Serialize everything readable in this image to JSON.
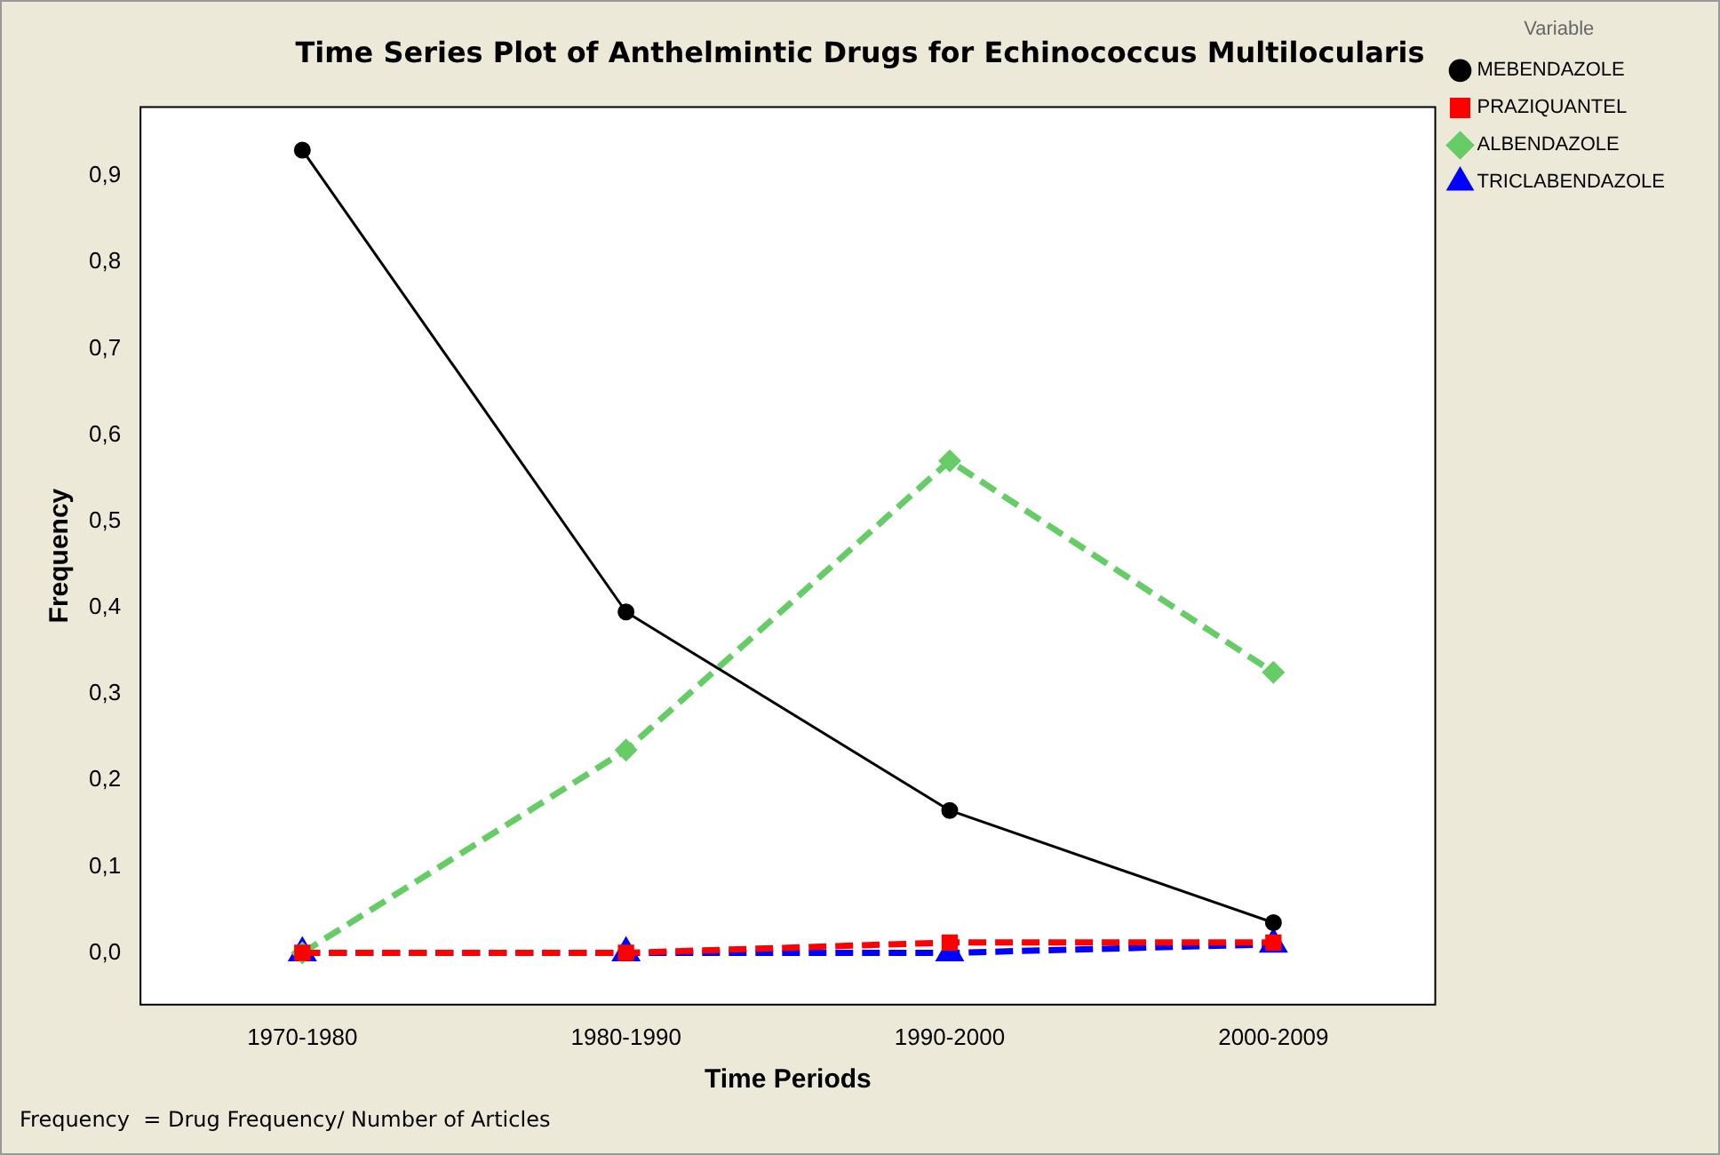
{
  "chart_data": {
    "type": "line",
    "title": "Time Series Plot of Anthelmintic Drugs for Echinococcus Multilocularis",
    "xlabel": "Time Periods",
    "ylabel": "Frequency",
    "legend_title": "Variable",
    "legend": "right",
    "grid": false,
    "categories": [
      "1970-1980",
      "1980-1990",
      "1990-2000",
      "2000-2009"
    ],
    "ylim": [
      -0.06,
      0.98
    ],
    "yticks": [
      {
        "value": 0,
        "label": "0,0"
      },
      {
        "value": 0.1,
        "label": "0,1"
      },
      {
        "value": 0.2,
        "label": "0,2"
      },
      {
        "value": 0.3,
        "label": "0,3"
      },
      {
        "value": 0.4,
        "label": "0,4"
      },
      {
        "value": 0.5,
        "label": "0,5"
      },
      {
        "value": 0.6,
        "label": "0,6"
      },
      {
        "value": 0.7,
        "label": "0,7"
      },
      {
        "value": 0.8,
        "label": "0,8"
      },
      {
        "value": 0.9,
        "label": "0,9"
      }
    ],
    "series": [
      {
        "name": "MEBENDAZOLE",
        "color": "#000000",
        "marker": "circle",
        "line_style": "solid",
        "values": [
          0.93,
          0.395,
          0.165,
          0.035
        ]
      },
      {
        "name": "PRAZIQUANTEL",
        "color": "#ff0000",
        "marker": "square",
        "line_style": "dashed",
        "values": [
          0,
          0,
          0.012,
          0.012
        ]
      },
      {
        "name": "ALBENDAZOLE",
        "color": "#66cc66",
        "marker": "diamond",
        "line_style": "dashed",
        "values": [
          0,
          0.235,
          0.57,
          0.325
        ]
      },
      {
        "name": "TRICLABENDAZOLE",
        "color": "#0000ff",
        "marker": "triangle",
        "line_style": "dashed",
        "values": [
          0,
          0,
          0,
          0.01
        ]
      }
    ],
    "annotations": [
      "Frequency  = Drug Frequency/ Number of Articles"
    ]
  }
}
